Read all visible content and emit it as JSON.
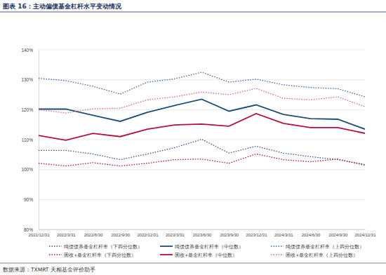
{
  "chart_data": {
    "type": "line",
    "title": "图表 16：主动偏债基金杠杆水平变动情况",
    "source": "数据来源：TXMRT 天相基金评价助手",
    "categories": [
      "2021/12/31",
      "2022/3/31",
      "2022/6/30",
      "2022/9/30",
      "2022/12/31",
      "2023/3/31",
      "2023/6/30",
      "2023/9/30",
      "2023/12/31",
      "2024/3/31",
      "2024/6/30",
      "2024/9/30",
      "2024/12/31"
    ],
    "series": [
      {
        "name": "纯债债券基金杠杆率（下四分位数）",
        "color": "#2f5597",
        "line_style": "dotted",
        "values": [
          106.4,
          106.4,
          105.2,
          103.3,
          105.2,
          107.3,
          110.1,
          105.5,
          107.8,
          105.5,
          104.3,
          103.3,
          101.7
        ]
      },
      {
        "name": "纯债债券基金杠杆率（中位数）",
        "color": "#1f4e79",
        "line_style": "solid",
        "values": [
          120.2,
          120.2,
          118.1,
          116.1,
          119.1,
          121.4,
          123.5,
          119.5,
          121.6,
          118.4,
          117.0,
          116.8,
          113.5
        ]
      },
      {
        "name": "纯债债券基金杠杆率（上四分位数）",
        "color": "#3b64b0",
        "line_style": "dotted",
        "values": [
          130.5,
          129.7,
          127.8,
          125.2,
          129.2,
          130.3,
          132.5,
          129.2,
          130.2,
          128.3,
          127.4,
          127.0,
          124.3
        ]
      },
      {
        "name": "固收+基金杠杆率（下四分位数）",
        "color": "#b4123a",
        "line_style": "dotted",
        "values": [
          102.1,
          101.2,
          102.3,
          101.2,
          102.1,
          103.3,
          103.5,
          102.1,
          105.2,
          103.3,
          102.6,
          103.5,
          101.4
        ]
      },
      {
        "name": "固收+基金杠杆率（中位数）",
        "color": "#b4123a",
        "line_style": "solid",
        "values": [
          111.4,
          109.8,
          112.1,
          111.0,
          113.5,
          114.9,
          115.2,
          114.5,
          118.7,
          115.4,
          114.0,
          114.0,
          112.1
        ]
      },
      {
        "name": "固收+基金杠杆率（上四分位数）",
        "color": "#e0607e",
        "line_style": "dotted",
        "values": [
          120.0,
          118.9,
          120.3,
          120.5,
          123.3,
          124.3,
          125.9,
          125.0,
          127.1,
          123.8,
          123.3,
          124.3,
          121.0
        ]
      }
    ],
    "ylim": [
      80,
      140
    ],
    "yticks": [
      {
        "value": 80,
        "label": "80%"
      },
      {
        "value": 90,
        "label": "90%"
      },
      {
        "value": 100,
        "label": "100%"
      },
      {
        "value": 110,
        "label": "110%"
      },
      {
        "value": 120,
        "label": "120%"
      },
      {
        "value": 130,
        "label": "130%"
      },
      {
        "value": 140,
        "label": "140%"
      }
    ],
    "grid": true,
    "legend": "bottom"
  }
}
